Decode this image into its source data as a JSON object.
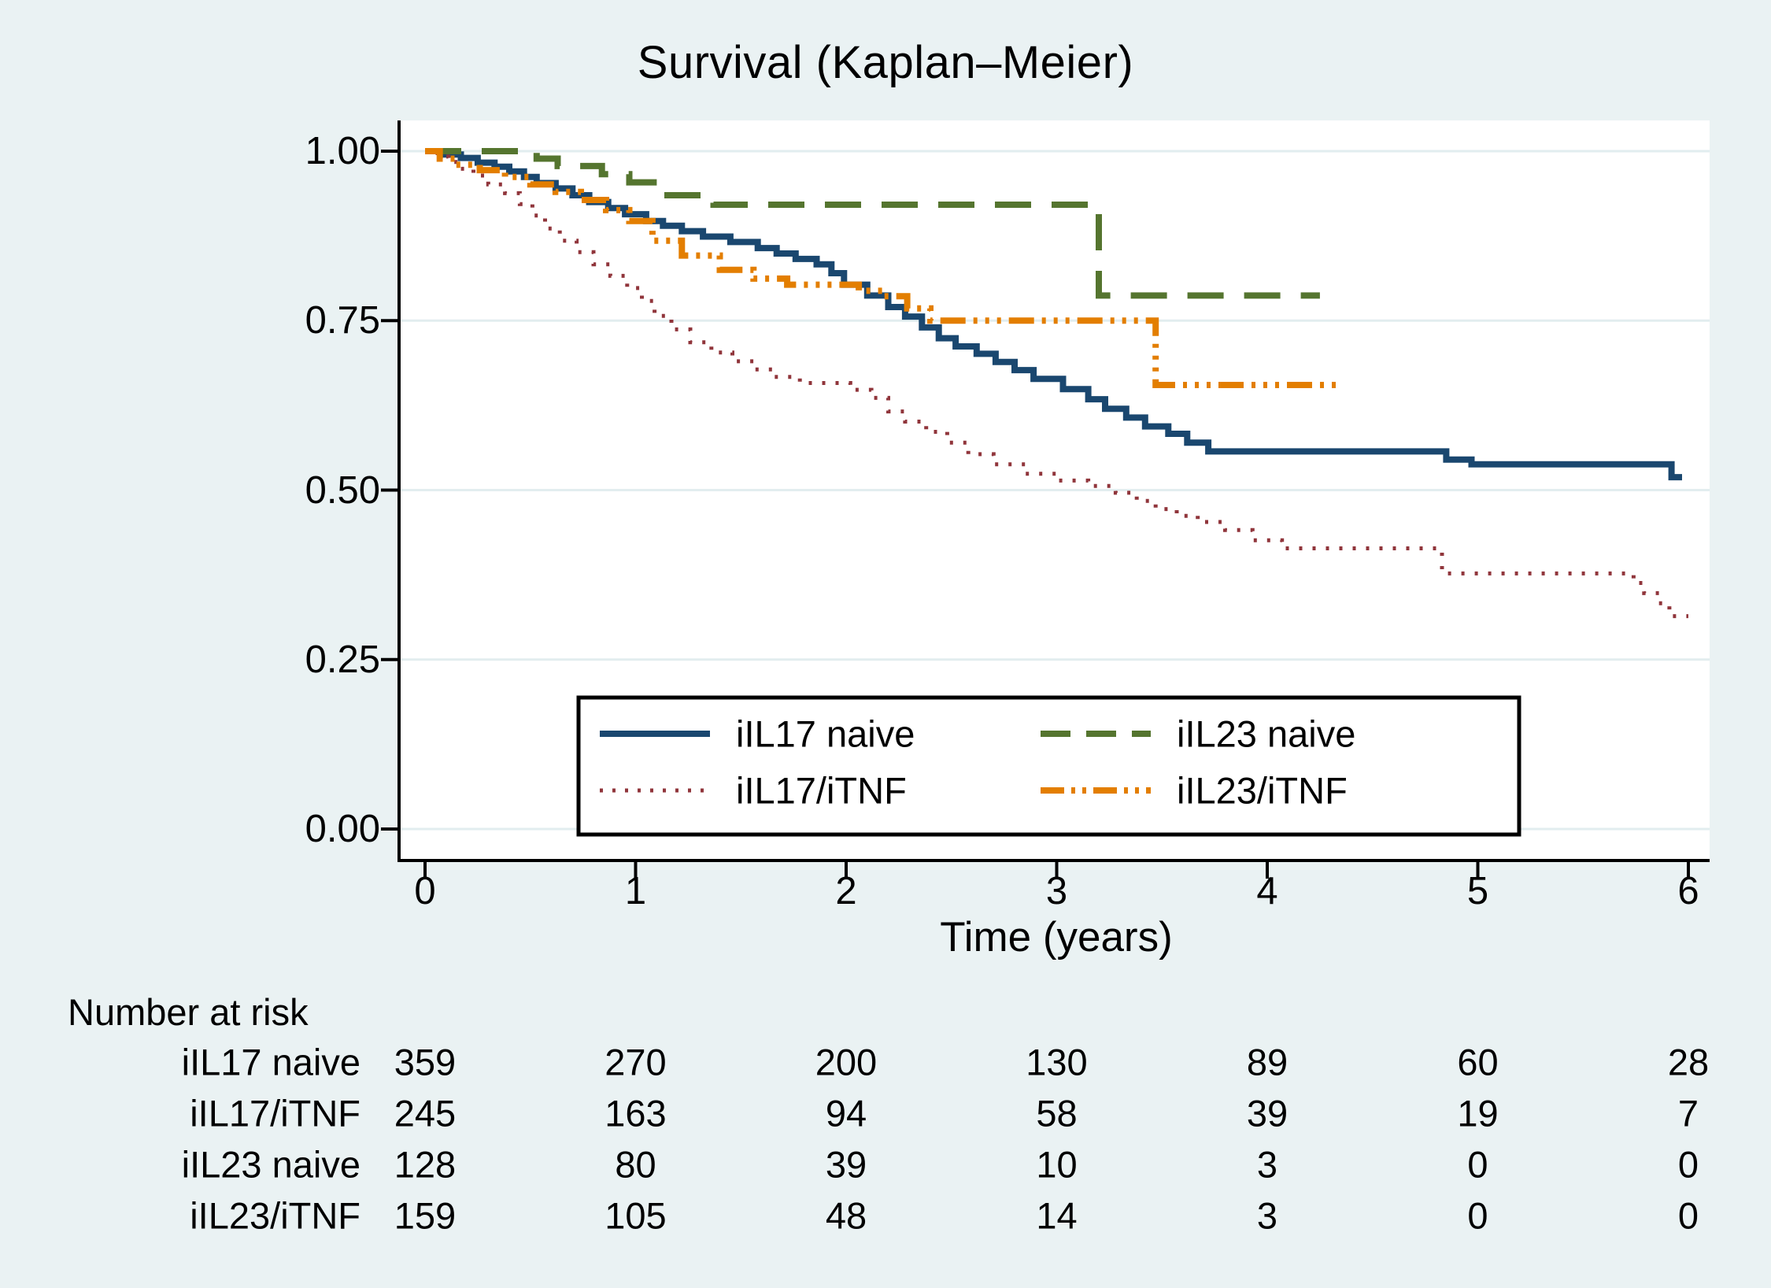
{
  "figure": {
    "background_color": "#eaf2f3",
    "plot_background_color": "#ffffff",
    "grid_color": "#e2edef",
    "axis_color": "#000000",
    "legend_border_color": "#000000",
    "legend_fill_color": "#ffffff"
  },
  "chart_data": {
    "type": "line",
    "subtype": "kaplan-meier-step",
    "title": "Survival (Kaplan–Meier)",
    "xlabel": "Time (years)",
    "ylabel": "",
    "xlim": [
      0,
      6
    ],
    "ylim": [
      0.0,
      1.0
    ],
    "grid": true,
    "legend_position": "inside-bottom-center",
    "x_ticks": [
      {
        "value": 0,
        "label": "0"
      },
      {
        "value": 1,
        "label": "1"
      },
      {
        "value": 2,
        "label": "2"
      },
      {
        "value": 3,
        "label": "3"
      },
      {
        "value": 4,
        "label": "4"
      },
      {
        "value": 5,
        "label": "5"
      },
      {
        "value": 6,
        "label": "6"
      }
    ],
    "y_ticks": [
      {
        "value": 1.0,
        "label": "1.00"
      },
      {
        "value": 0.75,
        "label": "0.75"
      },
      {
        "value": 0.5,
        "label": "0.50"
      },
      {
        "value": 0.25,
        "label": "0.25"
      },
      {
        "value": 0.0,
        "label": "0.00"
      }
    ],
    "series": [
      {
        "name": "iIL17 naive",
        "color": "#1a476f",
        "line_style": "solid",
        "line_width": 8,
        "points": [
          [
            0,
            1.0
          ],
          [
            0.08,
            0.995
          ],
          [
            0.17,
            0.99
          ],
          [
            0.25,
            0.983
          ],
          [
            0.33,
            0.977
          ],
          [
            0.4,
            0.97
          ],
          [
            0.47,
            0.962
          ],
          [
            0.53,
            0.953
          ],
          [
            0.62,
            0.945
          ],
          [
            0.7,
            0.935
          ],
          [
            0.78,
            0.925
          ],
          [
            0.87,
            0.916
          ],
          [
            0.95,
            0.907
          ],
          [
            1.05,
            0.897
          ],
          [
            1.13,
            0.89
          ],
          [
            1.22,
            0.882
          ],
          [
            1.32,
            0.874
          ],
          [
            1.45,
            0.866
          ],
          [
            1.58,
            0.857
          ],
          [
            1.67,
            0.849
          ],
          [
            1.76,
            0.841
          ],
          [
            1.86,
            0.833
          ],
          [
            1.93,
            0.82
          ],
          [
            1.99,
            0.803
          ],
          [
            2.1,
            0.787
          ],
          [
            2.2,
            0.77
          ],
          [
            2.28,
            0.756
          ],
          [
            2.36,
            0.74
          ],
          [
            2.44,
            0.724
          ],
          [
            2.52,
            0.712
          ],
          [
            2.62,
            0.701
          ],
          [
            2.71,
            0.689
          ],
          [
            2.8,
            0.677
          ],
          [
            2.89,
            0.664
          ],
          [
            3.03,
            0.649
          ],
          [
            3.15,
            0.634
          ],
          [
            3.23,
            0.62
          ],
          [
            3.33,
            0.607
          ],
          [
            3.42,
            0.594
          ],
          [
            3.53,
            0.583
          ],
          [
            3.62,
            0.57
          ],
          [
            3.72,
            0.557
          ],
          [
            4.85,
            0.545
          ],
          [
            4.97,
            0.538
          ],
          [
            5.92,
            0.519
          ],
          [
            5.97,
            0.519
          ]
        ]
      },
      {
        "name": "iIL17/iTNF",
        "color": "#90353b",
        "line_style": "dot",
        "line_width": 5,
        "points": [
          [
            0,
            1.0
          ],
          [
            0.06,
            0.992
          ],
          [
            0.11,
            0.984
          ],
          [
            0.17,
            0.974
          ],
          [
            0.23,
            0.964
          ],
          [
            0.3,
            0.951
          ],
          [
            0.38,
            0.938
          ],
          [
            0.45,
            0.922
          ],
          [
            0.51,
            0.905
          ],
          [
            0.57,
            0.886
          ],
          [
            0.64,
            0.868
          ],
          [
            0.72,
            0.851
          ],
          [
            0.8,
            0.833
          ],
          [
            0.88,
            0.816
          ],
          [
            0.96,
            0.798
          ],
          [
            1.03,
            0.779
          ],
          [
            1.09,
            0.757
          ],
          [
            1.17,
            0.737
          ],
          [
            1.26,
            0.718
          ],
          [
            1.36,
            0.703
          ],
          [
            1.46,
            0.69
          ],
          [
            1.56,
            0.678
          ],
          [
            1.66,
            0.667
          ],
          [
            1.78,
            0.658
          ],
          [
            2.02,
            0.648
          ],
          [
            2.12,
            0.636
          ],
          [
            2.2,
            0.616
          ],
          [
            2.28,
            0.601
          ],
          [
            2.38,
            0.586
          ],
          [
            2.48,
            0.57
          ],
          [
            2.58,
            0.553
          ],
          [
            2.7,
            0.538
          ],
          [
            2.85,
            0.524
          ],
          [
            3.0,
            0.514
          ],
          [
            3.15,
            0.506
          ],
          [
            3.28,
            0.496
          ],
          [
            3.38,
            0.484
          ],
          [
            3.47,
            0.472
          ],
          [
            3.57,
            0.462
          ],
          [
            3.67,
            0.453
          ],
          [
            3.8,
            0.441
          ],
          [
            3.93,
            0.426
          ],
          [
            4.07,
            0.414
          ],
          [
            4.83,
            0.377
          ],
          [
            5.74,
            0.363
          ],
          [
            5.79,
            0.348
          ],
          [
            5.86,
            0.333
          ],
          [
            5.91,
            0.314
          ],
          [
            6.0,
            0.314
          ]
        ]
      },
      {
        "name": "iIL23 naive",
        "color": "#55752f",
        "line_style": "longdash",
        "line_width": 8,
        "points": [
          [
            0,
            1.0
          ],
          [
            0.53,
            0.989
          ],
          [
            0.63,
            0.978
          ],
          [
            0.84,
            0.966
          ],
          [
            0.97,
            0.954
          ],
          [
            1.12,
            0.935
          ],
          [
            1.37,
            0.921
          ],
          [
            3.2,
            0.787
          ],
          [
            4.25,
            0.787
          ]
        ]
      },
      {
        "name": "iIL23/iTNF",
        "color": "#e37e00",
        "line_style": "dash-dot-dot",
        "line_width": 8,
        "points": [
          [
            0,
            1.0
          ],
          [
            0.07,
            0.989
          ],
          [
            0.14,
            0.98
          ],
          [
            0.26,
            0.972
          ],
          [
            0.38,
            0.962
          ],
          [
            0.5,
            0.951
          ],
          [
            0.62,
            0.94
          ],
          [
            0.74,
            0.928
          ],
          [
            0.86,
            0.913
          ],
          [
            0.97,
            0.897
          ],
          [
            1.08,
            0.868
          ],
          [
            1.22,
            0.846
          ],
          [
            1.4,
            0.825
          ],
          [
            1.56,
            0.812
          ],
          [
            1.72,
            0.803
          ],
          [
            2.06,
            0.794
          ],
          [
            2.18,
            0.786
          ],
          [
            2.29,
            0.768
          ],
          [
            2.4,
            0.75
          ],
          [
            3.47,
            0.655
          ],
          [
            4.35,
            0.655
          ]
        ]
      }
    ],
    "legend": {
      "rows": [
        [
          {
            "series_index": 0
          },
          {
            "series_index": 2
          }
        ],
        [
          {
            "series_index": 1
          },
          {
            "series_index": 3
          }
        ]
      ]
    },
    "risk_table": {
      "header": "Number at risk",
      "time_points": [
        0,
        1,
        2,
        3,
        4,
        5,
        6
      ],
      "rows": [
        {
          "label": "iIL17 naive",
          "values": [
            359,
            270,
            200,
            130,
            89,
            60,
            28
          ]
        },
        {
          "label": "iIL17/iTNF",
          "values": [
            245,
            163,
            94,
            58,
            39,
            19,
            7
          ]
        },
        {
          "label": "iIL23 naive",
          "values": [
            128,
            80,
            39,
            10,
            3,
            0,
            0
          ]
        },
        {
          "label": "iIL23/iTNF",
          "values": [
            159,
            105,
            48,
            14,
            3,
            0,
            0
          ]
        }
      ]
    }
  }
}
